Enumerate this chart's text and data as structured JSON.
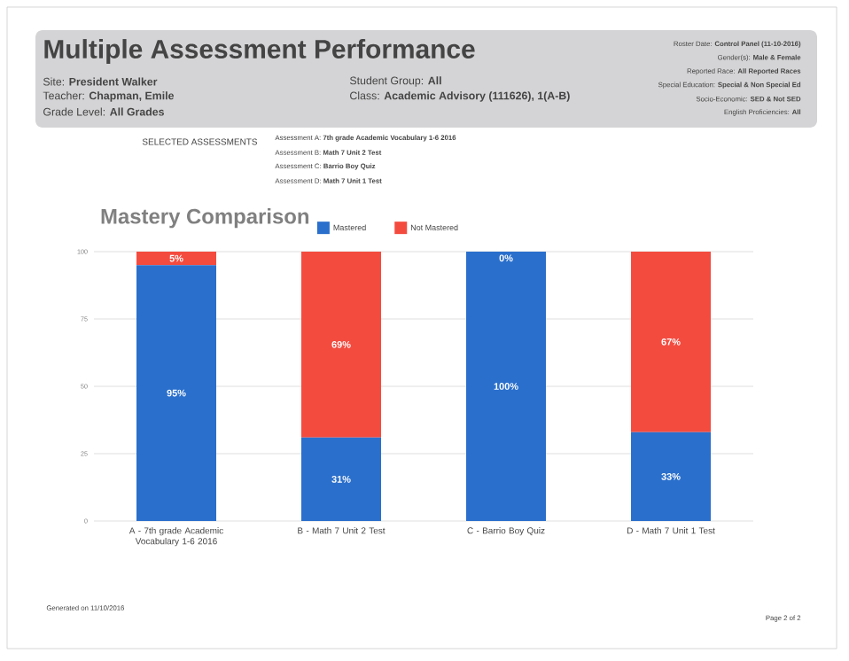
{
  "chart_data": {
    "type": "bar",
    "stacked": true,
    "title": "Mastery Comparison",
    "categories": [
      "A - 7th grade Academic Vocabulary 1-6 2016",
      "B - Math 7 Unit 2 Test",
      "C - Barrio Boy Quiz",
      "D - Math 7 Unit 1 Test"
    ],
    "series": [
      {
        "name": "Mastered",
        "color": "#2a6fcc",
        "values": [
          95,
          31,
          100,
          33
        ],
        "value_labels": [
          "95%",
          "31%",
          "100%",
          "33%"
        ]
      },
      {
        "name": "Not Mastered",
        "color": "#f44b3f",
        "values": [
          5,
          69,
          0,
          67
        ],
        "value_labels": [
          "5%",
          "69%",
          "0%",
          "67%"
        ]
      }
    ],
    "ylim": [
      0,
      100
    ],
    "yticks": [
      0,
      25,
      50,
      75,
      100
    ],
    "grid": "y",
    "legend": "top",
    "annotations": [
      "Multiple Assessment Performance",
      "Site: **President Walker**",
      "Teacher: **Chapman, Emile**",
      "Grade Level: **All Grades**",
      "Student Group: **All**",
      "Class: **Academic Advisory (111626), 1(A-B)**",
      "Roster Date: **Control Panel (11-10-2016)**",
      "Gender(s): **Male & Female**",
      "Reported Race: **All Reported Races**",
      "Special Education: **Special & Non Special Ed**",
      "Socio-Economic: **SED & Not SED**",
      "English Proficiencies: **All**",
      "SELECTED ASSESSMENTS",
      "Assessment A: **7th grade Academic Vocabulary 1-6 2016**",
      "Assessment B: **Math 7 Unit 2 Test**",
      "Assessment C: **Barrio Boy Quiz**",
      "Assessment D: **Math 7 Unit 1 Test**",
      "Generated on 11/10/2016",
      "Page 2 of 2"
    ]
  }
}
